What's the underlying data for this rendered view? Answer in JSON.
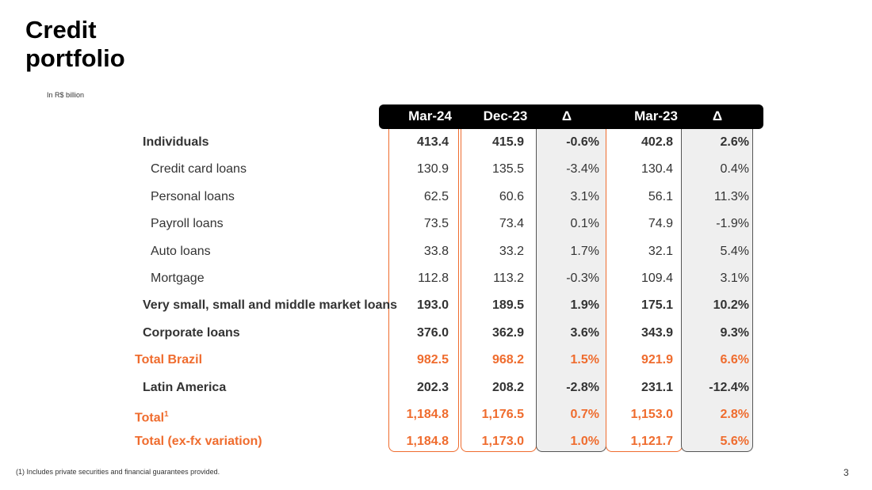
{
  "title": "Credit portfolio",
  "subtitle": "In R$ billion",
  "columns": [
    "Mar-24",
    "Dec-23",
    "Δ",
    "Mar-23",
    "Δ"
  ],
  "rows": [
    {
      "label": "Individuals",
      "sup": "",
      "values": [
        "413.4",
        "415.9",
        "-0.6%",
        "402.8",
        "2.6%"
      ]
    },
    {
      "label": "Credit card loans",
      "sup": "",
      "values": [
        "130.9",
        "135.5",
        "-3.4%",
        "130.4",
        "0.4%"
      ]
    },
    {
      "label": "Personal loans",
      "sup": "",
      "values": [
        "62.5",
        "60.6",
        "3.1%",
        "56.1",
        "11.3%"
      ]
    },
    {
      "label": "Payroll loans",
      "sup": "",
      "values": [
        "73.5",
        "73.4",
        "0.1%",
        "74.9",
        "-1.9%"
      ]
    },
    {
      "label": "Auto loans",
      "sup": "",
      "values": [
        "33.8",
        "33.2",
        "1.7%",
        "32.1",
        "5.4%"
      ]
    },
    {
      "label": "Mortgage",
      "sup": "",
      "values": [
        "112.8",
        "113.2",
        "-0.3%",
        "109.4",
        "3.1%"
      ]
    },
    {
      "label": "Very small, small and middle market loans",
      "sup": "",
      "values": [
        "193.0",
        "189.5",
        "1.9%",
        "175.1",
        "10.2%"
      ]
    },
    {
      "label": "Corporate loans",
      "sup": "",
      "values": [
        "376.0",
        "362.9",
        "3.6%",
        "343.9",
        "9.3%"
      ]
    },
    {
      "label": "Total Brazil",
      "sup": "",
      "values": [
        "982.5",
        "968.2",
        "1.5%",
        "921.9",
        "6.6%"
      ]
    },
    {
      "label": "Latin America",
      "sup": "",
      "values": [
        "202.3",
        "208.2",
        "-2.8%",
        "231.1",
        "-12.4%"
      ]
    },
    {
      "label": "Total",
      "sup": "1",
      "values": [
        "1,184.8",
        "1,176.5",
        "0.7%",
        "1,153.0",
        "2.8%"
      ]
    },
    {
      "label": "Total (ex-fx variation)",
      "sup": "",
      "values": [
        "1,184.8",
        "1,173.0",
        "1.0%",
        "1,121.7",
        "5.6%"
      ]
    }
  ],
  "footnote": "(1) Includes private securities and financial guarantees provided.",
  "page_number": "3",
  "colors": {
    "accent": "#ef6c2e",
    "header": "#000000",
    "delta_column_bg": "#efefef"
  }
}
